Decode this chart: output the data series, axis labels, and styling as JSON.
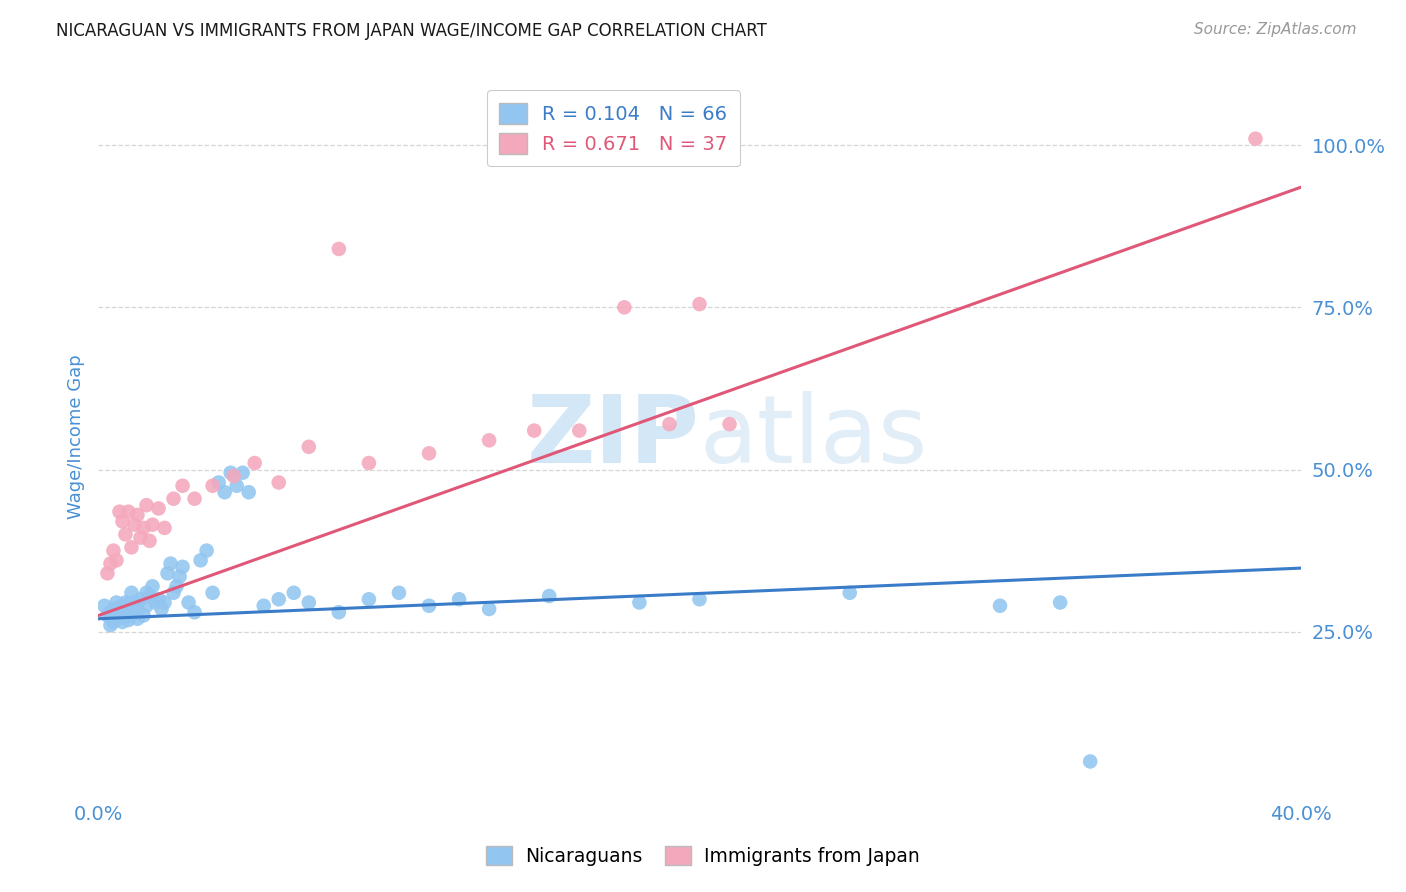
{
  "title": "NICARAGUAN VS IMMIGRANTS FROM JAPAN WAGE/INCOME GAP CORRELATION CHART",
  "source": "Source: ZipAtlas.com",
  "ylabel": "Wage/Income Gap",
  "right_yticks": [
    "100.0%",
    "75.0%",
    "50.0%",
    "25.0%"
  ],
  "right_ytick_vals": [
    1.0,
    0.75,
    0.5,
    0.25
  ],
  "legend_blue_r": "R = 0.104",
  "legend_blue_n": "N = 66",
  "legend_pink_r": "R = 0.671",
  "legend_pink_n": "N = 37",
  "watermark_zip": "ZIP",
  "watermark_atlas": "atlas",
  "blue_color": "#92C5F0",
  "pink_color": "#F4A8BC",
  "blue_line_color": "#3A7CC8",
  "pink_line_color": "#E05878",
  "axis_label_color": "#4A90D4",
  "right_tick_color": "#4A90D4",
  "grid_color": "#CCCCCC",
  "xmin": 0.0,
  "xmax": 0.4,
  "ymin": 0.0,
  "ymax": 1.1,
  "blue_line_x0": 0.0,
  "blue_line_x1": 0.4,
  "blue_line_y0": 0.27,
  "blue_line_y1": 0.348,
  "pink_line_x0": 0.0,
  "pink_line_x1": 0.4,
  "pink_line_y0": 0.275,
  "pink_line_y1": 0.935,
  "blue_scatter_x": [
    0.002,
    0.003,
    0.004,
    0.004,
    0.005,
    0.005,
    0.006,
    0.006,
    0.007,
    0.007,
    0.008,
    0.008,
    0.009,
    0.009,
    0.01,
    0.01,
    0.011,
    0.011,
    0.012,
    0.012,
    0.013,
    0.013,
    0.014,
    0.015,
    0.016,
    0.016,
    0.017,
    0.018,
    0.019,
    0.02,
    0.021,
    0.022,
    0.023,
    0.024,
    0.025,
    0.026,
    0.027,
    0.028,
    0.03,
    0.032,
    0.034,
    0.036,
    0.038,
    0.04,
    0.042,
    0.044,
    0.046,
    0.048,
    0.05,
    0.055,
    0.06,
    0.065,
    0.07,
    0.08,
    0.09,
    0.1,
    0.11,
    0.12,
    0.13,
    0.15,
    0.18,
    0.2,
    0.25,
    0.3,
    0.32,
    0.33
  ],
  "blue_scatter_y": [
    0.29,
    0.275,
    0.28,
    0.26,
    0.265,
    0.285,
    0.27,
    0.295,
    0.272,
    0.288,
    0.265,
    0.278,
    0.284,
    0.295,
    0.268,
    0.292,
    0.275,
    0.31,
    0.28,
    0.295,
    0.27,
    0.285,
    0.3,
    0.275,
    0.29,
    0.31,
    0.305,
    0.32,
    0.295,
    0.3,
    0.285,
    0.295,
    0.34,
    0.355,
    0.31,
    0.32,
    0.335,
    0.35,
    0.295,
    0.28,
    0.36,
    0.375,
    0.31,
    0.48,
    0.465,
    0.495,
    0.475,
    0.495,
    0.465,
    0.29,
    0.3,
    0.31,
    0.295,
    0.28,
    0.3,
    0.31,
    0.29,
    0.3,
    0.285,
    0.305,
    0.295,
    0.3,
    0.31,
    0.29,
    0.295,
    0.05
  ],
  "pink_scatter_x": [
    0.003,
    0.004,
    0.005,
    0.006,
    0.007,
    0.008,
    0.009,
    0.01,
    0.011,
    0.012,
    0.013,
    0.014,
    0.015,
    0.016,
    0.017,
    0.018,
    0.02,
    0.022,
    0.025,
    0.028,
    0.032,
    0.038,
    0.045,
    0.052,
    0.06,
    0.07,
    0.08,
    0.09,
    0.11,
    0.13,
    0.145,
    0.16,
    0.175,
    0.19,
    0.2,
    0.21,
    0.385
  ],
  "pink_scatter_y": [
    0.34,
    0.355,
    0.375,
    0.36,
    0.435,
    0.42,
    0.4,
    0.435,
    0.38,
    0.415,
    0.43,
    0.395,
    0.41,
    0.445,
    0.39,
    0.415,
    0.44,
    0.41,
    0.455,
    0.475,
    0.455,
    0.475,
    0.49,
    0.51,
    0.48,
    0.535,
    0.84,
    0.51,
    0.525,
    0.545,
    0.56,
    0.56,
    0.75,
    0.57,
    0.755,
    0.57,
    1.01
  ]
}
